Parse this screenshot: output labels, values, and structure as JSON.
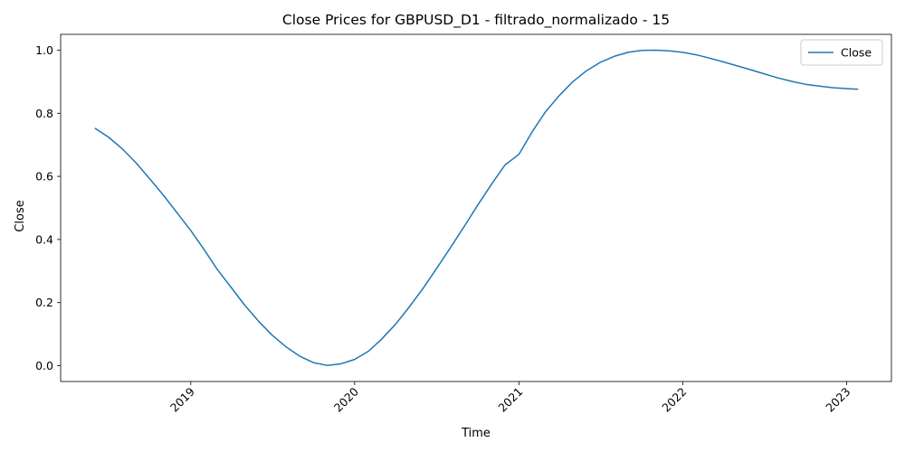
{
  "chart_data": {
    "type": "line",
    "title": "Close Prices for GBPUSD_D1 - filtrado_normalizado - 15",
    "xlabel": "Time",
    "ylabel": "Close",
    "xlim": [
      "2018-03-17",
      "2023-04-11"
    ],
    "ylim": [
      -0.05,
      1.05
    ],
    "x_ticks": [
      "2019",
      "2020",
      "2021",
      "2022",
      "2023"
    ],
    "y_ticks": [
      "0.0",
      "0.2",
      "0.4",
      "0.6",
      "0.8",
      "1.0"
    ],
    "grid": false,
    "legend": {
      "position": "top-right",
      "entries": [
        "Close"
      ]
    },
    "series": [
      {
        "name": "Close",
        "color": "#1f77b4",
        "x": [
          "2018-06-01",
          "2018-07-01",
          "2018-08-01",
          "2018-09-01",
          "2018-10-01",
          "2018-11-01",
          "2018-12-01",
          "2019-01-01",
          "2019-02-01",
          "2019-03-01",
          "2019-04-01",
          "2019-05-01",
          "2019-06-01",
          "2019-07-01",
          "2019-08-01",
          "2019-09-01",
          "2019-10-01",
          "2019-11-01",
          "2019-12-01",
          "2020-01-01",
          "2020-02-01",
          "2020-03-01",
          "2020-04-01",
          "2020-05-01",
          "2020-06-01",
          "2020-07-01",
          "2020-08-01",
          "2020-09-01",
          "2020-10-01",
          "2020-11-01",
          "2020-12-01",
          "2021-01-01",
          "2021-02-01",
          "2021-03-01",
          "2021-04-01",
          "2021-05-01",
          "2021-06-01",
          "2021-07-01",
          "2021-08-01",
          "2021-09-01",
          "2021-10-01",
          "2021-11-01",
          "2021-12-01",
          "2022-01-01",
          "2022-02-01",
          "2022-03-01",
          "2022-04-01",
          "2022-05-01",
          "2022-06-01",
          "2022-07-01",
          "2022-08-01",
          "2022-09-01",
          "2022-10-01",
          "2022-11-01",
          "2022-12-01",
          "2023-01-01",
          "2023-01-27"
        ],
        "y": [
          0.753,
          0.725,
          0.688,
          0.643,
          0.593,
          0.54,
          0.485,
          0.428,
          0.365,
          0.305,
          0.248,
          0.192,
          0.141,
          0.097,
          0.06,
          0.03,
          0.01,
          0.001,
          0.006,
          0.02,
          0.046,
          0.084,
          0.131,
          0.185,
          0.244,
          0.307,
          0.373,
          0.441,
          0.508,
          0.575,
          0.636,
          0.67,
          0.744,
          0.804,
          0.856,
          0.9,
          0.935,
          0.961,
          0.98,
          0.993,
          0.999,
          1.0,
          0.998,
          0.993,
          0.985,
          0.975,
          0.963,
          0.951,
          0.938,
          0.925,
          0.912,
          0.901,
          0.892,
          0.886,
          0.881,
          0.878,
          0.876
        ]
      }
    ]
  }
}
